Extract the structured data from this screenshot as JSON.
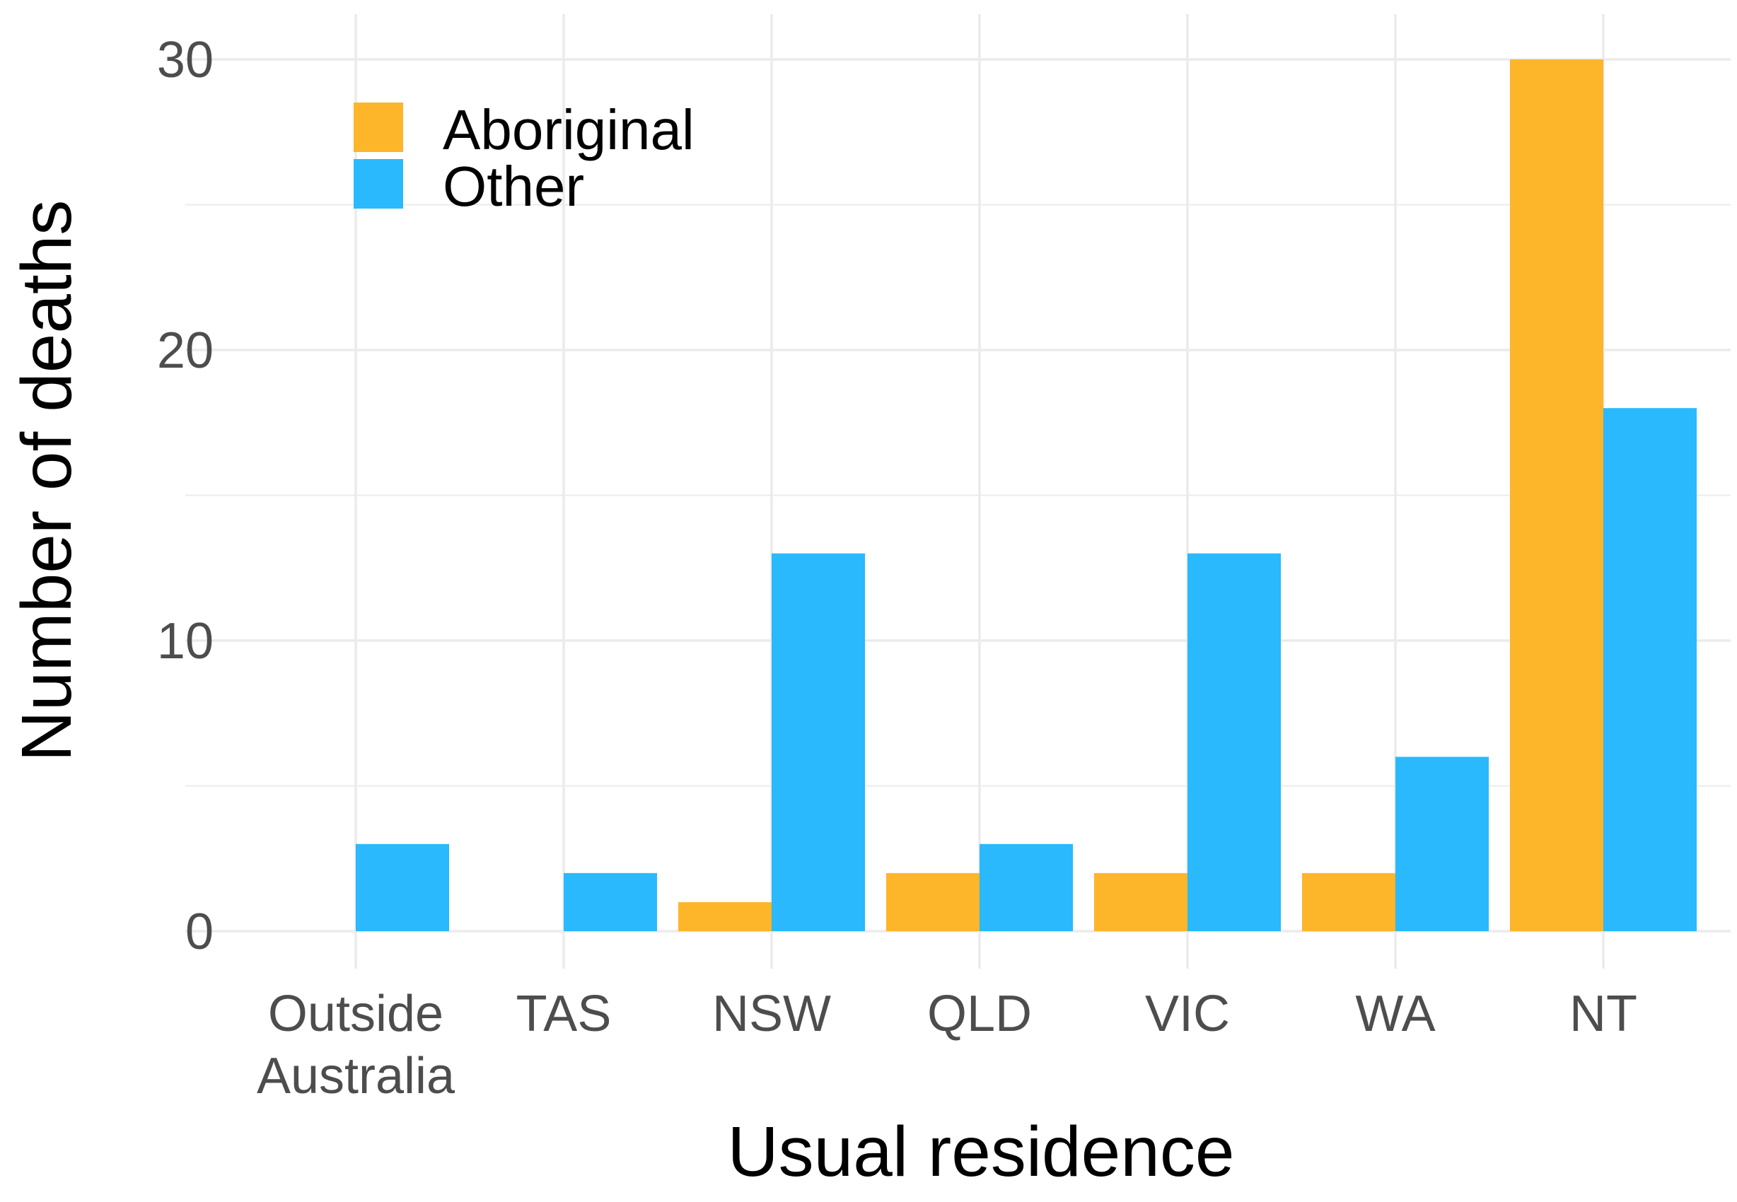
{
  "chart_data": {
    "type": "bar",
    "categories": [
      "Outside Australia",
      "TAS",
      "NSW",
      "QLD",
      "VIC",
      "WA",
      "NT"
    ],
    "category_lines": [
      [
        "Outside",
        "Australia"
      ],
      [
        "TAS"
      ],
      [
        "NSW"
      ],
      [
        "QLD"
      ],
      [
        "VIC"
      ],
      [
        "WA"
      ],
      [
        "NT"
      ]
    ],
    "series": [
      {
        "name": "Aboriginal",
        "color": "#FDB52A",
        "values": [
          0,
          0,
          1,
          2,
          2,
          2,
          30
        ]
      },
      {
        "name": "Other",
        "color": "#29B9FC",
        "values": [
          3,
          2,
          13,
          3,
          13,
          6,
          18
        ]
      }
    ],
    "xlabel": "Usual residence",
    "ylabel": "Number of deaths",
    "ylim": [
      0,
      30
    ],
    "yticks": [
      0,
      10,
      20,
      30
    ],
    "grid": true,
    "legend_position": "top-left"
  }
}
